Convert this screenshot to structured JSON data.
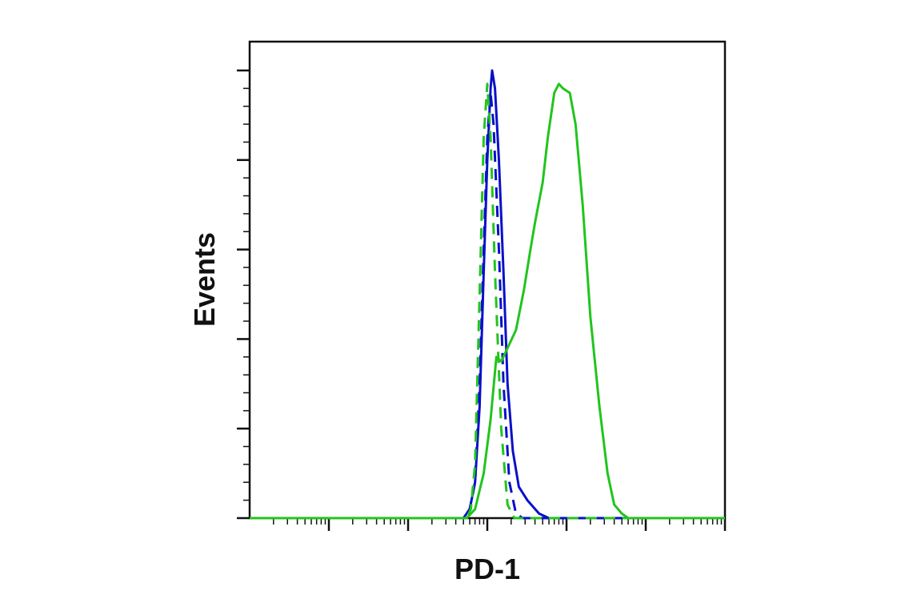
{
  "chart_data": {
    "type": "line",
    "title": "",
    "xlabel": "PD-1",
    "ylabel": "Events",
    "x_scale": "log",
    "xlim": [
      1,
      1000000
    ],
    "ylim": [
      0,
      100
    ],
    "grid": false,
    "legend": "none",
    "series": [
      {
        "color": "#0a10c8",
        "style": "solid",
        "points": [
          [
            1,
            0
          ],
          [
            500,
            0
          ],
          [
            600,
            2
          ],
          [
            700,
            8
          ],
          [
            800,
            25
          ],
          [
            900,
            55
          ],
          [
            1000,
            80
          ],
          [
            1100,
            96
          ],
          [
            1150,
            100
          ],
          [
            1250,
            96
          ],
          [
            1400,
            80
          ],
          [
            1600,
            55
          ],
          [
            1800,
            30
          ],
          [
            2100,
            15
          ],
          [
            2500,
            7
          ],
          [
            3200,
            4
          ],
          [
            4500,
            1
          ],
          [
            6000,
            0
          ],
          [
            1000000,
            0
          ]
        ]
      },
      {
        "color": "#0a10c8",
        "style": "dashed",
        "points": [
          [
            1,
            0
          ],
          [
            500,
            0
          ],
          [
            600,
            2
          ],
          [
            700,
            8
          ],
          [
            800,
            30
          ],
          [
            900,
            60
          ],
          [
            1000,
            85
          ],
          [
            1100,
            95
          ],
          [
            1200,
            88
          ],
          [
            1400,
            60
          ],
          [
            1600,
            30
          ],
          [
            1900,
            8
          ],
          [
            2300,
            1
          ],
          [
            2800,
            0
          ],
          [
            1000000,
            0
          ]
        ]
      },
      {
        "color": "#22c41e",
        "style": "dashed",
        "points": [
          [
            1,
            0
          ],
          [
            550,
            0
          ],
          [
            620,
            2
          ],
          [
            700,
            12
          ],
          [
            800,
            50
          ],
          [
            900,
            85
          ],
          [
            1000,
            97
          ],
          [
            1100,
            85
          ],
          [
            1250,
            55
          ],
          [
            1500,
            20
          ],
          [
            1800,
            3
          ],
          [
            2200,
            0
          ],
          [
            1000000,
            0
          ]
        ]
      },
      {
        "color": "#22c41e",
        "style": "solid",
        "points": [
          [
            1,
            0
          ],
          [
            550,
            0
          ],
          [
            700,
            2
          ],
          [
            900,
            10
          ],
          [
            1100,
            22
          ],
          [
            1300,
            36
          ],
          [
            1500,
            35
          ],
          [
            1800,
            38
          ],
          [
            2300,
            42
          ],
          [
            2900,
            51
          ],
          [
            3500,
            60
          ],
          [
            4000,
            66
          ],
          [
            5000,
            75
          ],
          [
            5800,
            85
          ],
          [
            7000,
            95
          ],
          [
            8000,
            97
          ],
          [
            9000,
            96
          ],
          [
            11000,
            95
          ],
          [
            13000,
            88
          ],
          [
            16000,
            70
          ],
          [
            20000,
            45
          ],
          [
            26000,
            25
          ],
          [
            33000,
            10
          ],
          [
            40000,
            3
          ],
          [
            50000,
            1
          ],
          [
            60000,
            0
          ],
          [
            1000000,
            0
          ]
        ]
      }
    ]
  }
}
